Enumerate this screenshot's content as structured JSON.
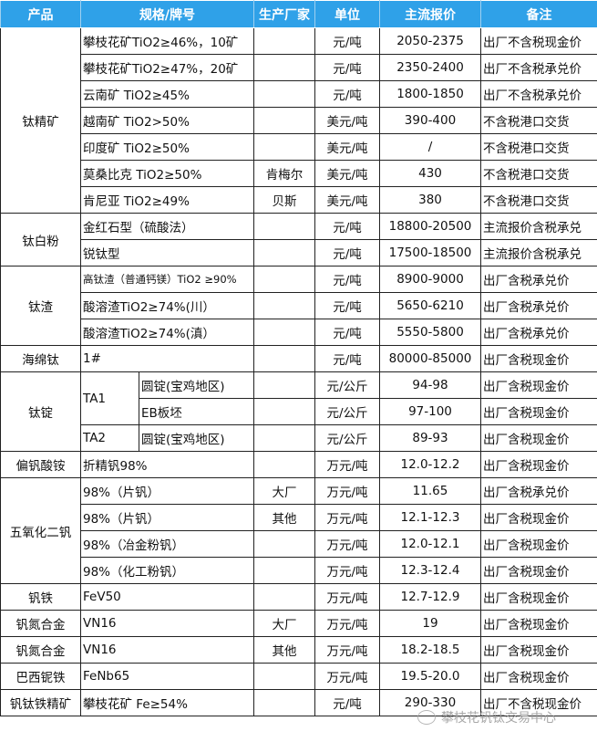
{
  "header": [
    "产品",
    "规格/牌号",
    "生产厂家",
    "单位",
    "主流报价",
    "备注"
  ],
  "groups": [
    {
      "product": "钛精矿",
      "rows": [
        {
          "spec": "攀枝花矿TiO2≥46%，10矿",
          "maker": "",
          "unit": "元/吨",
          "price": "2050-2375",
          "note": "出厂不含税现金价"
        },
        {
          "spec": "攀枝花矿TiO2≥47%，20矿",
          "maker": "",
          "unit": "元/吨",
          "price": "2350-2400",
          "note": "出厂不含税承兑价"
        },
        {
          "spec": "云南矿 TiO2≥45%",
          "maker": "",
          "unit": "元/吨",
          "price": "1800-1850",
          "note": "出厂不含税承兑价"
        },
        {
          "spec": "越南矿 TiO2>50%",
          "maker": "",
          "unit": "美元/吨",
          "price": "390-400",
          "note": "不含税港口交货"
        },
        {
          "spec": "印度矿 TiO2≥50%",
          "maker": "",
          "unit": "美元/吨",
          "price": "/",
          "note": "不含税港口交货"
        },
        {
          "spec": "莫桑比克 TiO2≥50%",
          "maker": "肯梅尔",
          "unit": "美元/吨",
          "price": "430",
          "note": "不含税港口交货"
        },
        {
          "spec": "肯尼亚 TiO2≥49%",
          "maker": "贝斯",
          "unit": "美元/吨",
          "price": "380",
          "note": "不含税港口交货"
        }
      ]
    },
    {
      "product": "钛白粉",
      "rows": [
        {
          "spec": "金红石型（硫酸法）",
          "maker": "",
          "unit": "元/吨",
          "price": "18800-20500",
          "note": "主流报价含税承兑"
        },
        {
          "spec": "锐钛型",
          "maker": "",
          "unit": "元/吨",
          "price": "17500-18500",
          "note": "主流报价含税承兑"
        }
      ]
    },
    {
      "product": "钛渣",
      "rows": [
        {
          "spec": "高钛渣（普通钙镁）TiO2 ≥90%",
          "maker": "",
          "unit": "元/吨",
          "price": "8900-9000",
          "note": "出厂含税承兑价",
          "small": true
        },
        {
          "spec": "酸溶渣TiO2≥74%(川）",
          "maker": "",
          "unit": "元/吨",
          "price": "5650-6210",
          "note": "出厂含税承兑价"
        },
        {
          "spec": "酸溶渣TiO2≥74%(滇）",
          "maker": "",
          "unit": "元/吨",
          "price": "5550-5800",
          "note": "出厂含税承兑价"
        }
      ]
    },
    {
      "product": "海绵钛",
      "rows": [
        {
          "spec": "1#",
          "maker": "",
          "unit": "元/吨",
          "price": "80000-85000",
          "note": "出厂含税现金价"
        }
      ]
    },
    {
      "product": "钛锭",
      "rows": [
        {
          "grade": "TA1",
          "spec": "圆锭(宝鸡地区)",
          "unit": "元/公斤",
          "price": "94-98",
          "note": "出厂含税现金价"
        },
        {
          "grade": "TA1",
          "spec": "EB板坯",
          "unit": "元/公斤",
          "price": "97-100",
          "note": "出厂含税现金价"
        },
        {
          "grade": "TA2",
          "spec": "圆锭(宝鸡地区)",
          "unit": "元/公斤",
          "price": "89-93",
          "note": "出厂含税现金价"
        }
      ]
    },
    {
      "product": "偏钒酸铵",
      "rows": [
        {
          "spec": "折精钒98%",
          "maker": "",
          "unit": "万元/吨",
          "price": "12.0-12.2",
          "note": "出厂含税现金价"
        }
      ]
    },
    {
      "product": "五氧化二钒",
      "rows": [
        {
          "spec": "98%（片钒）",
          "maker": "大厂",
          "unit": "万元/吨",
          "price": "11.65",
          "note": "出厂含税承兑价"
        },
        {
          "spec": "98%（片钒）",
          "maker": "其他",
          "unit": "万元/吨",
          "price": "12.1-12.3",
          "note": "出厂含税现金价"
        },
        {
          "spec": "98%（冶金粉钒）",
          "maker": "",
          "unit": "万元/吨",
          "price": "12.0-12.1",
          "note": "出厂含税现金价"
        },
        {
          "spec": "98%（化工粉钒）",
          "maker": "",
          "unit": "万元/吨",
          "price": "12.3-12.4",
          "note": "出厂含税现金价"
        }
      ]
    },
    {
      "product": "钒铁",
      "rows": [
        {
          "spec": "FeV50",
          "maker": "",
          "unit": "万元/吨",
          "price": "12.7-12.9",
          "note": "出厂含税现金价"
        }
      ]
    },
    {
      "product": "钒氮合金",
      "rows": [
        {
          "spec": "VN16",
          "maker": "大厂",
          "unit": "万元/吨",
          "price": "19",
          "note": "出厂含税现金价"
        }
      ]
    },
    {
      "product": "钒氮合金",
      "rows": [
        {
          "spec": "VN16",
          "maker": "其他",
          "unit": "万元/吨",
          "price": "18.2-18.5",
          "note": "出厂含税现金价"
        }
      ]
    },
    {
      "product": "巴西铌铁",
      "rows": [
        {
          "spec": "FeNb65",
          "maker": "",
          "unit": "万元/吨",
          "price": "19.5-20.0",
          "note": "出厂含税现金价"
        }
      ]
    },
    {
      "product": "钒钛铁精矿",
      "rows": [
        {
          "spec": "攀枝花矿 Fe≥54%",
          "maker": "",
          "unit": "元/吨",
          "price": "290-330",
          "note": "出厂不含税现金价"
        }
      ]
    }
  ],
  "watermark": "攀枝花钒钛交易中心"
}
